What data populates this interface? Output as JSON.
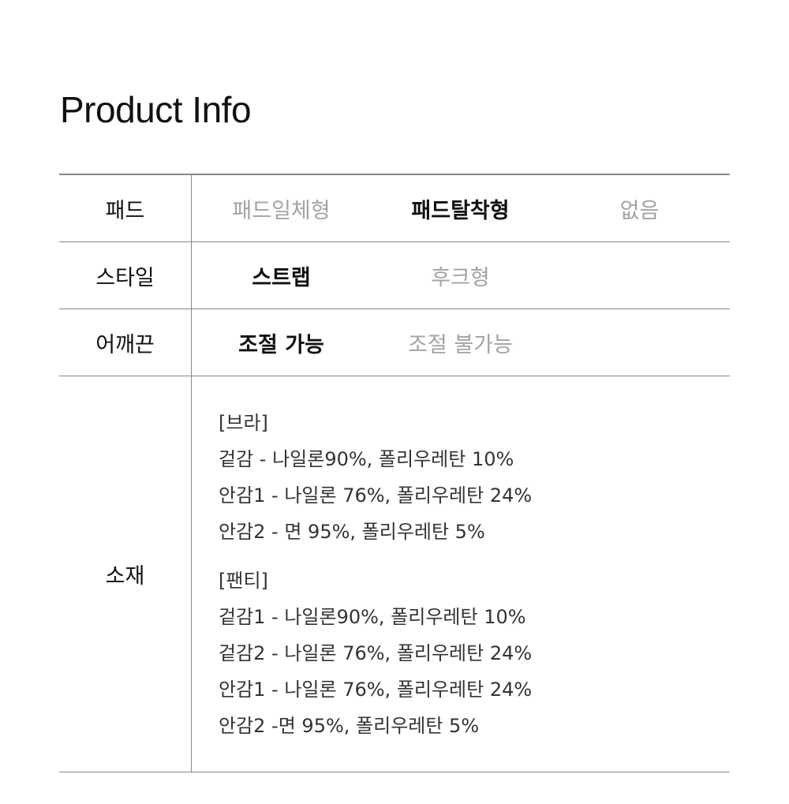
{
  "title": "Product Info",
  "rows": [
    {
      "label": "패드",
      "options": [
        {
          "text": "패드일체형",
          "selected": false
        },
        {
          "text": "패드탈착형",
          "selected": true
        },
        {
          "text": "없음",
          "selected": false
        }
      ]
    },
    {
      "label": "스타일",
      "options": [
        {
          "text": "스트랩",
          "selected": true
        },
        {
          "text": "후크형",
          "selected": false
        }
      ]
    },
    {
      "label": "어깨끈",
      "options": [
        {
          "text": "조절 가능",
          "selected": true
        },
        {
          "text": "조절 불가능",
          "selected": false
        }
      ]
    }
  ],
  "material": {
    "label": "소재",
    "groups": [
      {
        "heading": "[브라]",
        "lines": [
          "겉감 - 나일론90%, 폴리우레탄 10%",
          "안감1 - 나일론 76%, 폴리우레탄 24%",
          "안감2 - 면 95%, 폴리우레탄 5%"
        ]
      },
      {
        "heading": "[팬티]",
        "lines": [
          "겉감1 - 나일론90%, 폴리우레탄 10%",
          "겉감2 - 나일론 76%, 폴리우레탄 24%",
          "안감1 - 나일론 76%, 폴리우레탄 24%",
          "안감2 -면 95%, 폴리우레탄 5%"
        ]
      }
    ]
  },
  "colors": {
    "selected": "#111111",
    "unselected": "#a3a3a3",
    "border": "#888888"
  }
}
